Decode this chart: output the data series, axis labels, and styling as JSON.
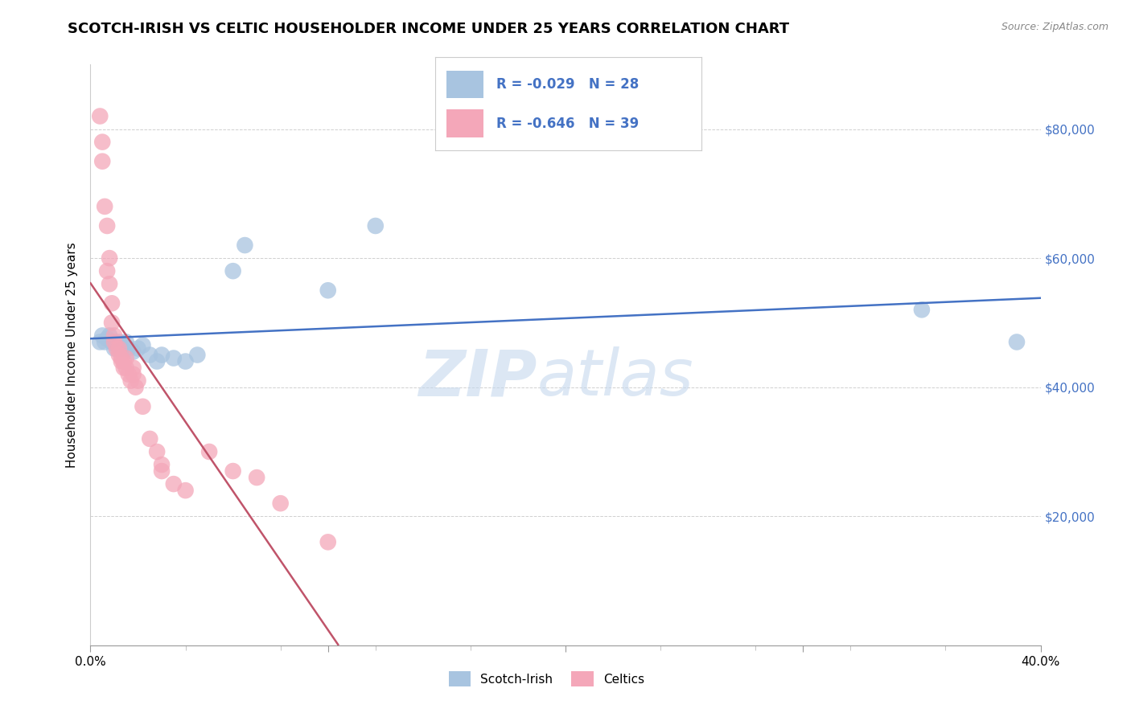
{
  "title": "SCOTCH-IRISH VS CELTIC HOUSEHOLDER INCOME UNDER 25 YEARS CORRELATION CHART",
  "source": "Source: ZipAtlas.com",
  "ylabel": "Householder Income Under 25 years",
  "xlim": [
    0.0,
    0.4
  ],
  "ylim": [
    0,
    90000
  ],
  "xtick_labels": [
    "0.0%",
    "",
    "",
    "",
    "40.0%"
  ],
  "xtick_vals": [
    0.0,
    0.1,
    0.2,
    0.3,
    0.4
  ],
  "xtick_minor_vals": [
    0.04,
    0.08,
    0.12,
    0.16,
    0.24,
    0.28,
    0.32,
    0.36
  ],
  "ytick_vals": [
    20000,
    40000,
    60000,
    80000
  ],
  "ytick_labels": [
    "$20,000",
    "$40,000",
    "$60,000",
    "$80,000"
  ],
  "scotch_irish_x": [
    0.004,
    0.005,
    0.006,
    0.007,
    0.008,
    0.009,
    0.01,
    0.011,
    0.012,
    0.013,
    0.014,
    0.015,
    0.016,
    0.018,
    0.02,
    0.022,
    0.025,
    0.028,
    0.03,
    0.035,
    0.04,
    0.045,
    0.06,
    0.065,
    0.1,
    0.12,
    0.35,
    0.39
  ],
  "scotch_irish_y": [
    47000,
    48000,
    47000,
    47500,
    48000,
    47000,
    46000,
    46500,
    47000,
    46000,
    46500,
    47000,
    46000,
    45500,
    46000,
    46500,
    45000,
    44000,
    45000,
    44500,
    44000,
    45000,
    58000,
    62000,
    55000,
    65000,
    52000,
    47000
  ],
  "celtics_x": [
    0.004,
    0.005,
    0.005,
    0.006,
    0.007,
    0.007,
    0.008,
    0.008,
    0.009,
    0.009,
    0.01,
    0.01,
    0.011,
    0.012,
    0.012,
    0.013,
    0.013,
    0.014,
    0.014,
    0.015,
    0.015,
    0.016,
    0.017,
    0.018,
    0.018,
    0.019,
    0.02,
    0.022,
    0.025,
    0.028,
    0.03,
    0.03,
    0.035,
    0.04,
    0.05,
    0.06,
    0.07,
    0.08,
    0.1
  ],
  "celtics_y": [
    82000,
    78000,
    75000,
    68000,
    65000,
    58000,
    60000,
    56000,
    53000,
    50000,
    48000,
    47000,
    46000,
    46000,
    45000,
    44000,
    44500,
    43000,
    44000,
    43000,
    44500,
    42000,
    41000,
    42000,
    43000,
    40000,
    41000,
    37000,
    32000,
    30000,
    27000,
    28000,
    25000,
    24000,
    30000,
    27000,
    26000,
    22000,
    16000
  ],
  "scotch_irish_color": "#a8c4e0",
  "celtics_color": "#f4a7b9",
  "scotch_irish_line_color": "#4472c4",
  "celtics_line_color": "#c0546a",
  "R_scotch": -0.029,
  "N_scotch": 28,
  "R_celtic": -0.646,
  "N_celtic": 39,
  "watermark_zip": "ZIP",
  "watermark_atlas": "atlas",
  "title_fontsize": 13,
  "axis_label_fontsize": 11,
  "tick_fontsize": 11,
  "legend_fontsize": 12
}
